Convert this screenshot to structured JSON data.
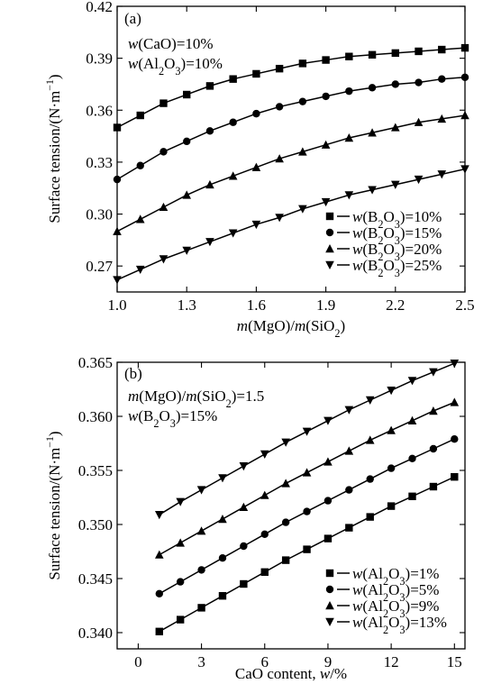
{
  "chart_data": [
    {
      "type": "line",
      "panel_label": "(a)",
      "xlabel": "m(MgO)/m(SiO2)",
      "ylabel": "Surface tension/(N·m−1)",
      "xlim": [
        1.0,
        2.5
      ],
      "ylim": [
        0.255,
        0.42
      ],
      "xticks": [
        1.0,
        1.3,
        1.6,
        1.9,
        2.2,
        2.5
      ],
      "xtick_labels": [
        "1.0",
        "1.3",
        "1.6",
        "1.9",
        "2.2",
        "2.5"
      ],
      "yticks": [
        0.27,
        0.3,
        0.33,
        0.36,
        0.39,
        0.42
      ],
      "ytick_labels": [
        "0.27",
        "0.30",
        "0.33",
        "0.36",
        "0.39",
        "0.42"
      ],
      "annotations": [
        "w(CaO)=10%",
        "w(Al2O3)=10%"
      ],
      "legend_position": "lower-right",
      "grid": false,
      "x": [
        1.0,
        1.1,
        1.2,
        1.3,
        1.4,
        1.5,
        1.6,
        1.7,
        1.8,
        1.9,
        2.0,
        2.1,
        2.2,
        2.3,
        2.4,
        2.5
      ],
      "series": [
        {
          "name": "w(B2O3)=10%",
          "marker": "square",
          "values": [
            0.35,
            0.357,
            0.364,
            0.369,
            0.374,
            0.378,
            0.381,
            0.384,
            0.387,
            0.389,
            0.391,
            0.392,
            0.393,
            0.394,
            0.395,
            0.396
          ]
        },
        {
          "name": "w(B2O3)=15%",
          "marker": "circle",
          "values": [
            0.32,
            0.328,
            0.336,
            0.342,
            0.348,
            0.353,
            0.358,
            0.362,
            0.365,
            0.368,
            0.371,
            0.373,
            0.375,
            0.376,
            0.378,
            0.379
          ]
        },
        {
          "name": "w(B2O3)=20%",
          "marker": "triangle-up",
          "values": [
            0.29,
            0.297,
            0.304,
            0.311,
            0.317,
            0.322,
            0.327,
            0.332,
            0.336,
            0.34,
            0.344,
            0.347,
            0.35,
            0.353,
            0.355,
            0.357
          ]
        },
        {
          "name": "w(B2O3)=25%",
          "marker": "triangle-down",
          "values": [
            0.262,
            0.268,
            0.274,
            0.279,
            0.284,
            0.289,
            0.294,
            0.298,
            0.303,
            0.307,
            0.311,
            0.314,
            0.317,
            0.32,
            0.323,
            0.326
          ]
        }
      ]
    },
    {
      "type": "line",
      "panel_label": "(b)",
      "xlabel": "CaO content, w/%",
      "ylabel": "Surface tension/(N·m−1)",
      "xlim": [
        -1,
        15.5
      ],
      "ylim": [
        0.3385,
        0.365
      ],
      "xticks": [
        0,
        3,
        6,
        9,
        12,
        15
      ],
      "xtick_labels": [
        "0",
        "3",
        "6",
        "9",
        "12",
        "15"
      ],
      "yticks": [
        0.34,
        0.345,
        0.35,
        0.355,
        0.36,
        0.365
      ],
      "ytick_labels": [
        "0.340",
        "0.345",
        "0.350",
        "0.355",
        "0.360",
        "0.365"
      ],
      "annotations": [
        "m(MgO)/m(SiO2)=1.5",
        "w(B2O3)=15%"
      ],
      "legend_position": "lower-right",
      "grid": false,
      "x": [
        1,
        2,
        3,
        4,
        5,
        6,
        7,
        8,
        9,
        10,
        11,
        12,
        13,
        14,
        15
      ],
      "series": [
        {
          "name": "w(Al2O3)=1%",
          "marker": "square",
          "values": [
            0.3401,
            0.3412,
            0.3423,
            0.3434,
            0.3445,
            0.3456,
            0.3467,
            0.3477,
            0.3487,
            0.3497,
            0.3507,
            0.3517,
            0.3526,
            0.3535,
            0.3544
          ]
        },
        {
          "name": "w(Al2O3)=5%",
          "marker": "circle",
          "values": [
            0.3436,
            0.3447,
            0.3458,
            0.3469,
            0.348,
            0.3491,
            0.3502,
            0.3512,
            0.3522,
            0.3532,
            0.3542,
            0.3552,
            0.3561,
            0.357,
            0.3579
          ]
        },
        {
          "name": "w(Al2O3)=9%",
          "marker": "triangle-up",
          "values": [
            0.3472,
            0.3483,
            0.3494,
            0.3505,
            0.3516,
            0.3527,
            0.3538,
            0.3548,
            0.3558,
            0.3568,
            0.3578,
            0.3587,
            0.3596,
            0.3605,
            0.3613
          ]
        },
        {
          "name": "w(Al2O3)=13%",
          "marker": "triangle-down",
          "values": [
            0.3509,
            0.3521,
            0.3532,
            0.3543,
            0.3554,
            0.3565,
            0.3576,
            0.3586,
            0.3596,
            0.3606,
            0.3615,
            0.3624,
            0.3633,
            0.3641,
            0.3649
          ]
        }
      ]
    }
  ]
}
